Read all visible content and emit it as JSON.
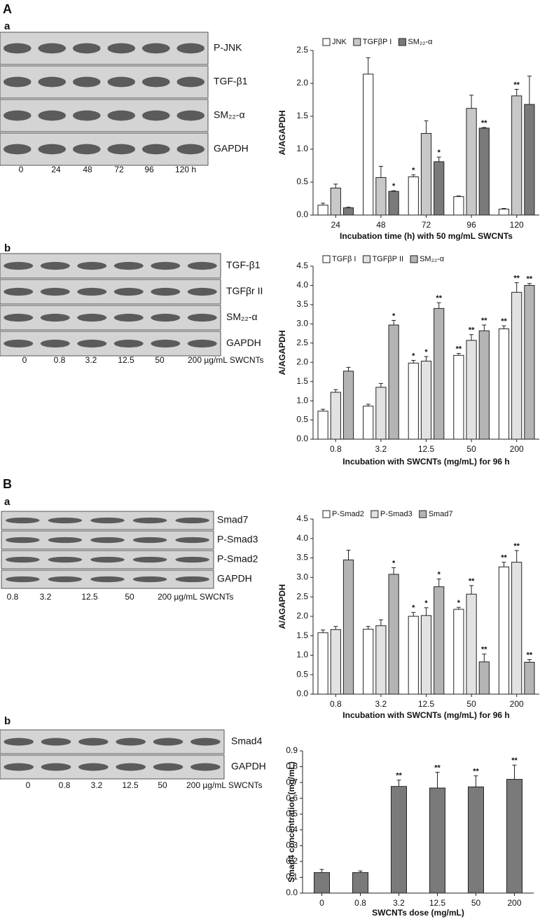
{
  "panel_labels": [
    "A",
    "a",
    "b",
    "B",
    "a",
    "b"
  ],
  "blots": [
    {
      "proteins": [
        "P-JNK",
        "TGF-β1",
        "SM₂₂-α",
        "GAPDH"
      ],
      "lanes": [
        "0",
        "24",
        "48",
        "72",
        "96",
        "120 h"
      ]
    },
    {
      "proteins": [
        "TGF-β1",
        "TGFβr II",
        "SM₂₂-α",
        "GAPDH"
      ],
      "lanes": [
        "0",
        "0.8",
        "3.2",
        "12.5",
        "50",
        "200 µg/mL SWCNTs"
      ]
    },
    {
      "proteins": [
        "Smad7",
        "P-Smad3",
        "P-Smad2",
        "GAPDH"
      ],
      "lanes": [
        "0.8",
        "3.2",
        "12.5",
        "50",
        "200 µg/mL SWCNTs"
      ]
    },
    {
      "proteins": [
        "Smad4",
        "GAPDH"
      ],
      "lanes": [
        "0",
        "0.8",
        "3.2",
        "12.5",
        "50",
        "200 µg/mL SWCNTs"
      ]
    }
  ],
  "chart_data": [
    {
      "type": "bar",
      "y_label": "A/AGAPDH",
      "x_label": "Incubation time (h) with 50 mg/mL SWCNTs",
      "categories": [
        "24",
        "48",
        "72",
        "96",
        "120"
      ],
      "series": [
        {
          "name": "JNK",
          "color": "#ffffff",
          "values": [
            0.15,
            2.14,
            0.58,
            0.28,
            0.09
          ],
          "errors": [
            0.03,
            0.25,
            0.03,
            0.01,
            0.01
          ],
          "sig": [
            null,
            null,
            "*",
            null,
            null
          ]
        },
        {
          "name": "TGFβP I",
          "color": "#c8c8c8",
          "values": [
            0.41,
            0.57,
            1.24,
            1.62,
            1.81
          ],
          "errors": [
            0.06,
            0.17,
            0.19,
            0.2,
            0.1
          ],
          "sig": [
            null,
            null,
            null,
            null,
            "**"
          ]
        },
        {
          "name": "SM₂₂-α",
          "color": "#7a7a7a",
          "values": [
            0.11,
            0.36,
            0.81,
            1.32,
            1.68
          ],
          "errors": [
            0.01,
            0.01,
            0.07,
            0.01,
            0.43
          ],
          "sig": [
            null,
            "*",
            "*",
            "**",
            null
          ]
        }
      ],
      "ylim": [
        0,
        2.5
      ],
      "yticks": [
        {
          "value": 0,
          "label": "0.0"
        },
        0.5,
        {
          "value": 1,
          "label": "1.0"
        },
        1.5,
        {
          "value": 2,
          "label": "2.0"
        },
        2.5
      ]
    },
    {
      "type": "bar",
      "y_label": "A/AGAPDH",
      "x_label": "Incubation with SWCNTs (mg/mL) for 96 h",
      "categories": [
        "0.8",
        "3.2",
        "12.5",
        "50",
        "200"
      ],
      "series": [
        {
          "name": "TGFβ I",
          "color": "#ffffff",
          "values": [
            0.73,
            0.86,
            1.98,
            2.18,
            2.87
          ],
          "errors": [
            0.05,
            0.05,
            0.07,
            0.05,
            0.08
          ],
          "sig": [
            null,
            null,
            "*",
            "**",
            "**"
          ]
        },
        {
          "name": "TGFβP II",
          "color": "#e2e2e2",
          "values": [
            1.22,
            1.35,
            2.03,
            2.57,
            3.82
          ],
          "errors": [
            0.07,
            0.1,
            0.12,
            0.15,
            0.25
          ],
          "sig": [
            null,
            null,
            "*",
            "**",
            "**"
          ]
        },
        {
          "name": "SM₂₂-α",
          "color": "#b4b4b4",
          "values": [
            1.77,
            2.97,
            3.4,
            2.82,
            4.0
          ],
          "errors": [
            0.1,
            0.12,
            0.15,
            0.15,
            0.05
          ],
          "sig": [
            null,
            "*",
            "**",
            "**",
            "**"
          ]
        }
      ],
      "ylim": [
        0,
        4.5
      ],
      "yticks": [
        {
          "value": 0,
          "label": "0.0"
        },
        0.5,
        {
          "value": 1,
          "label": "1.0"
        },
        1.5,
        {
          "value": 2,
          "label": "2.0"
        },
        2.5,
        {
          "value": 3,
          "label": "3.0"
        },
        3.5,
        {
          "value": 4,
          "label": "4.0"
        },
        4.5
      ]
    },
    {
      "type": "bar",
      "y_label": "A/AGAPDH",
      "x_label": "Incubation with SWCNTs (mg/mL) for 96 h",
      "categories": [
        "0.8",
        "3.2",
        "12.5",
        "50",
        "200"
      ],
      "series": [
        {
          "name": "P-Smad2",
          "color": "#ffffff",
          "values": [
            1.58,
            1.67,
            2.0,
            2.18,
            3.27
          ],
          "errors": [
            0.07,
            0.07,
            0.1,
            0.05,
            0.12
          ],
          "sig": [
            null,
            null,
            "*",
            "*",
            "**"
          ]
        },
        {
          "name": "P-Smad3",
          "color": "#e2e2e2",
          "values": [
            1.66,
            1.76,
            2.02,
            2.57,
            3.39
          ],
          "errors": [
            0.08,
            0.15,
            0.2,
            0.22,
            0.3
          ],
          "sig": [
            null,
            null,
            "*",
            "**",
            "**"
          ]
        },
        {
          "name": "Smad7",
          "color": "#b4b4b4",
          "values": [
            3.45,
            3.08,
            2.76,
            0.83,
            0.82
          ],
          "errors": [
            0.25,
            0.17,
            0.2,
            0.2,
            0.07
          ],
          "sig": [
            null,
            "*",
            "*",
            "**",
            "**"
          ]
        }
      ],
      "ylim": [
        0,
        4.5
      ],
      "yticks": [
        {
          "value": 0,
          "label": "0.0"
        },
        0.5,
        {
          "value": 1,
          "label": "1.0"
        },
        1.5,
        {
          "value": 2,
          "label": "2.0"
        },
        2.5,
        {
          "value": 3,
          "label": "3.0"
        },
        3.5,
        {
          "value": 4,
          "label": "4.0"
        },
        4.5
      ]
    },
    {
      "type": "bar",
      "y_label": "Smad4 concentration (mg/mL)",
      "x_label": "SWCNTs dose (mg/mL)",
      "categories": [
        "0",
        "0.8",
        "3.2",
        "12.5",
        "50",
        "200"
      ],
      "color": "#7a7a7a",
      "values": [
        0.13,
        0.13,
        0.675,
        0.665,
        0.672,
        0.72
      ],
      "errors": [
        0.02,
        0.01,
        0.04,
        0.1,
        0.07,
        0.09
      ],
      "sig": [
        null,
        null,
        "**",
        "**",
        "**",
        "**"
      ],
      "ylim": [
        0,
        0.9
      ],
      "yticks": [
        {
          "value": 0,
          "label": "0.0"
        },
        0.1,
        0.2,
        0.3,
        0.4,
        0.5,
        0.6,
        0.7,
        0.8,
        0.9
      ]
    }
  ]
}
